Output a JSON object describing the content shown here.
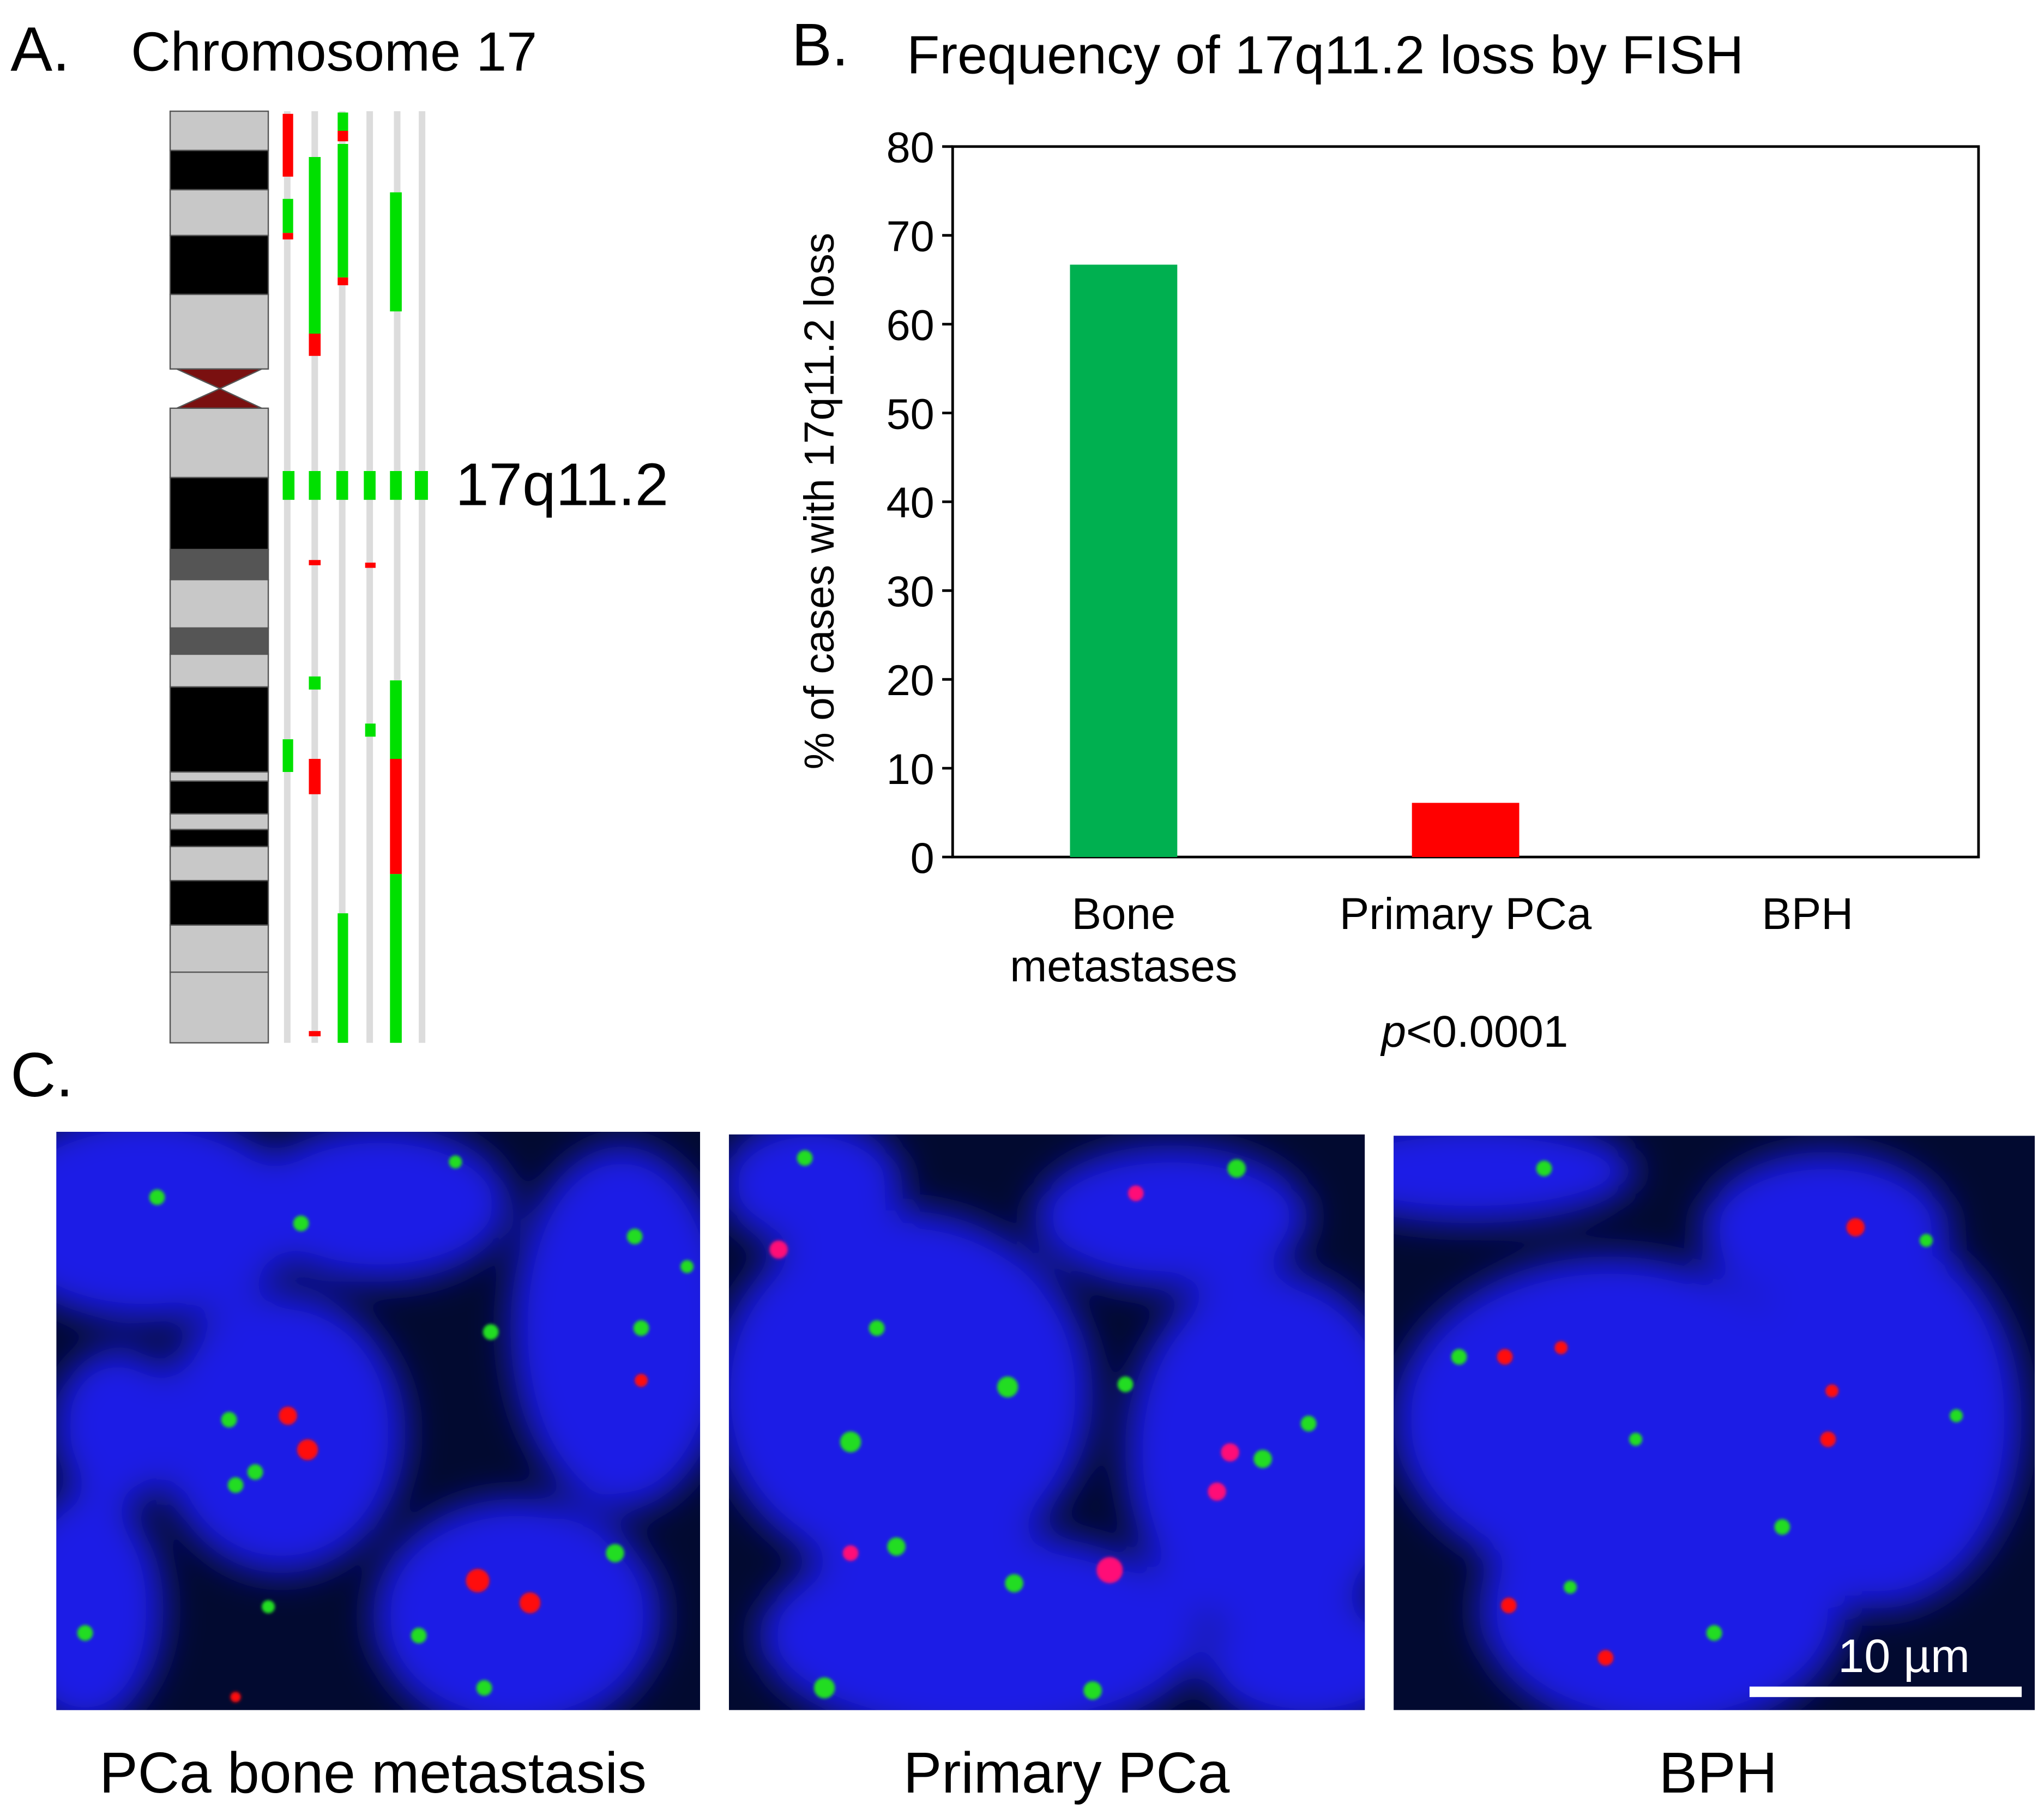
{
  "panel_a": {
    "label": "A.",
    "title": "Chromosome 17",
    "band_label": "17q11.2"
  },
  "chart_data": {
    "type": "bar",
    "panel_label": "B.",
    "title": "Frequency of 17q11.2 loss by FISH",
    "y_label": "% of cases with 17q11.2 loss",
    "categories": [
      "Bone metastases",
      "Primary PCa",
      "BPH"
    ],
    "values": [
      66.7,
      6.1,
      0
    ],
    "colors": [
      "#00b050",
      "#ff0000",
      null
    ],
    "ylim": [
      0,
      80
    ],
    "yticks": [
      0,
      10,
      20,
      30,
      40,
      50,
      60,
      70,
      80
    ],
    "grid": false,
    "annotation": "p<0.0001"
  },
  "panel_c": {
    "label": "C.",
    "images": [
      {
        "caption": "PCa bone metastasis"
      },
      {
        "caption": "Primary PCa"
      },
      {
        "caption": "BPH"
      }
    ],
    "scale_bar": "10 µm"
  }
}
